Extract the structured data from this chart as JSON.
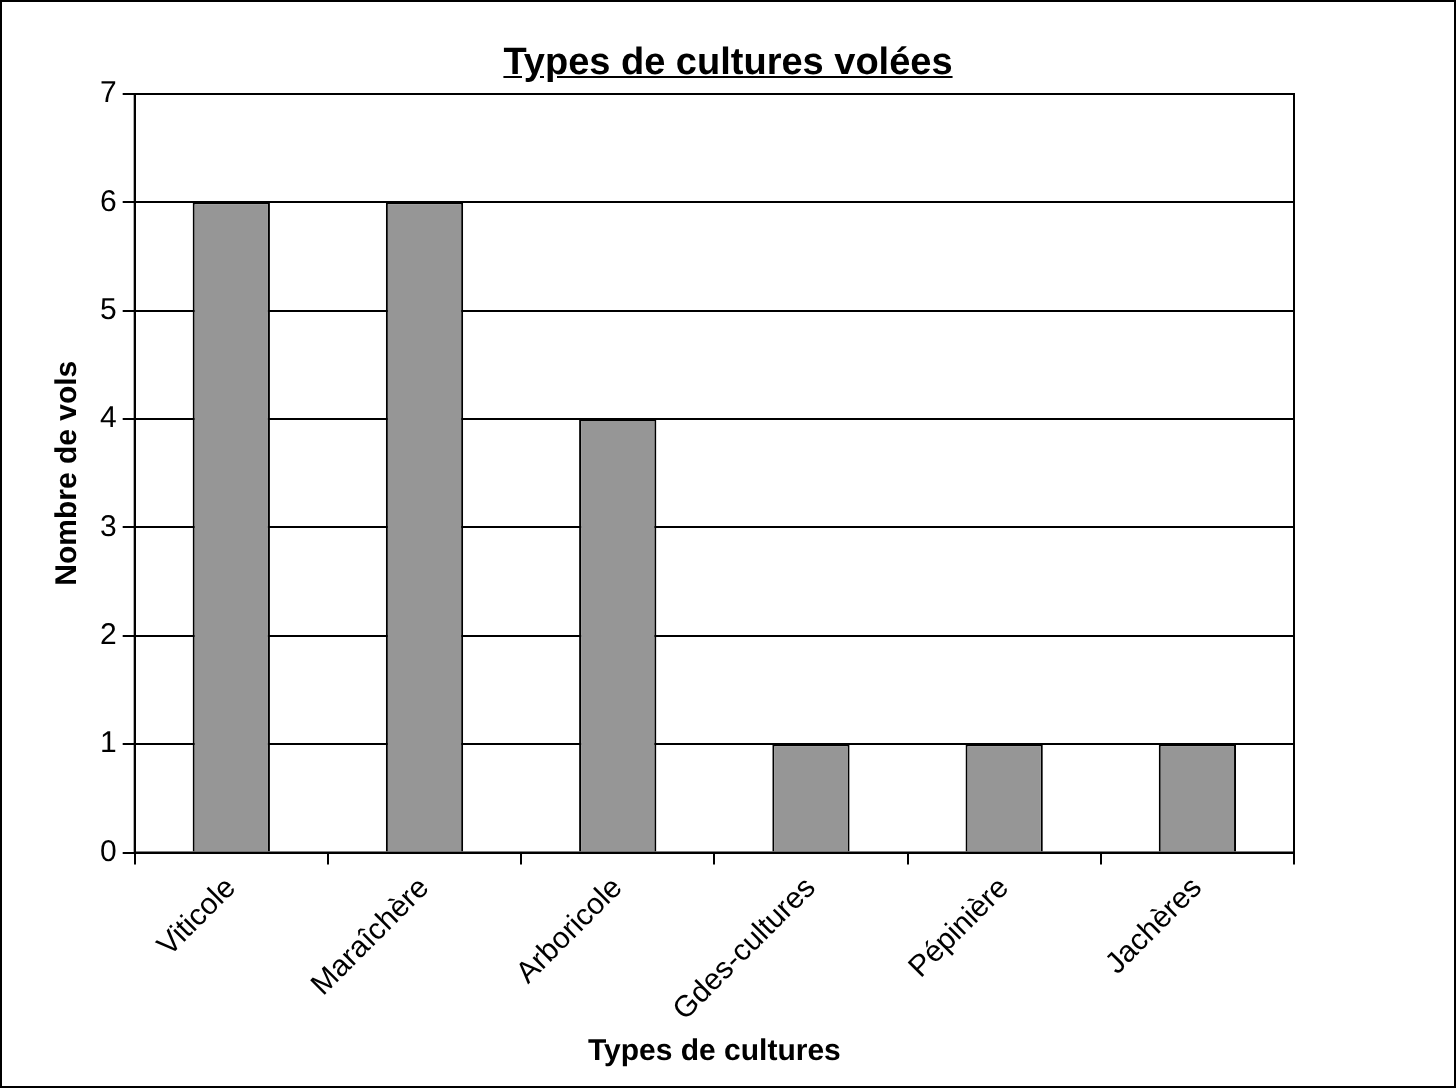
{
  "chart_data": {
    "type": "bar",
    "title": "Types de cultures volées",
    "xlabel": "Types de cultures",
    "ylabel": "Nombre de vols",
    "categories": [
      "Viticole",
      "Maraîchère",
      "Arboricole",
      "Gdes-cultures",
      "Pépinière",
      "Jachères"
    ],
    "values": [
      6,
      6,
      4,
      1,
      1,
      1
    ],
    "color": "#969696",
    "ylim": [
      0,
      7
    ],
    "yticks": [
      0,
      1,
      2,
      3,
      4,
      5,
      6,
      7
    ],
    "grid": "y",
    "legend": false
  }
}
